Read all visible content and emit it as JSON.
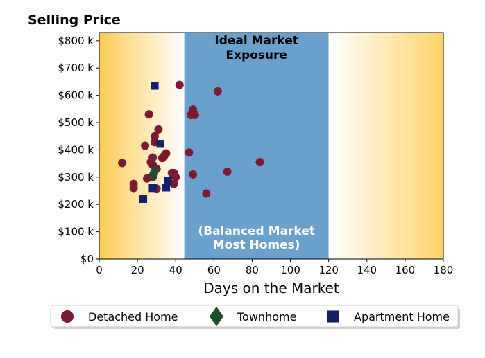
{
  "chart_data": {
    "type": "scatter",
    "title": "Selling Price",
    "xlabel": "Days on the Market",
    "ylabel": "",
    "xlim": [
      0,
      180
    ],
    "ylim": [
      0,
      830000
    ],
    "xticks": [
      0,
      20,
      40,
      60,
      80,
      100,
      120,
      140,
      160,
      180
    ],
    "xtick_labels": [
      "0",
      "20",
      "40",
      "60",
      "80",
      "100",
      "120",
      "140",
      "160",
      "180"
    ],
    "yticks": [
      0,
      100000,
      200000,
      300000,
      400000,
      500000,
      600000,
      700000,
      800000
    ],
    "ytick_labels": [
      "$0",
      "$100 k",
      "$200 k",
      "$300 k",
      "$400 k",
      "$500 k",
      "$600 k",
      "$700 k",
      "$800 k"
    ],
    "grid": false,
    "legend_position": "bottom",
    "bands": [
      {
        "x0": 0,
        "x1": 44.5,
        "style": "gradient",
        "color_edge": "#ffcc55",
        "color_inner": "#ffffff"
      },
      {
        "x0": 44.5,
        "x1": 120,
        "style": "solid",
        "color": "#6aa0cc",
        "label_top": [
          "Ideal Market",
          "Exposure"
        ],
        "label_bottom": [
          "(Balanced Market",
          "Most Homes)"
        ]
      },
      {
        "x0": 120,
        "x1": 180,
        "style": "gradient",
        "color_edge": "#ffd36a",
        "color_inner": "#ffffff"
      }
    ],
    "series": [
      {
        "name": "Detached Home",
        "marker": "circle",
        "color": "#7b1a33",
        "points": [
          [
            12,
            352000
          ],
          [
            18,
            275000
          ],
          [
            18,
            260000
          ],
          [
            24,
            415000
          ],
          [
            26,
            530000
          ],
          [
            25,
            295000
          ],
          [
            27,
            355000
          ],
          [
            28,
            372000
          ],
          [
            28,
            345000
          ],
          [
            28,
            300000
          ],
          [
            29,
            450000
          ],
          [
            29,
            428000
          ],
          [
            30,
            330000
          ],
          [
            30,
            258000
          ],
          [
            31,
            475000
          ],
          [
            33,
            370000
          ],
          [
            34,
            378000
          ],
          [
            35,
            387000
          ],
          [
            38,
            315000
          ],
          [
            39,
            315000
          ],
          [
            40,
            300000
          ],
          [
            39,
            275000
          ],
          [
            42,
            638000
          ],
          [
            47,
            390000
          ],
          [
            48,
            528000
          ],
          [
            49,
            548000
          ],
          [
            50,
            528000
          ],
          [
            49,
            310000
          ],
          [
            56,
            240000
          ],
          [
            62,
            615000
          ],
          [
            67,
            320000
          ],
          [
            84,
            355000
          ]
        ]
      },
      {
        "name": "Townhome",
        "marker": "diamond",
        "color": "#1e4d2b",
        "points": [
          [
            28,
            308000
          ],
          [
            29,
            322000
          ]
        ]
      },
      {
        "name": "Apartment Home",
        "marker": "square",
        "color": "#13216a",
        "points": [
          [
            29,
            635000
          ],
          [
            32,
            422000
          ],
          [
            36,
            285000
          ],
          [
            35,
            262000
          ],
          [
            28,
            260000
          ],
          [
            23,
            220000
          ]
        ]
      }
    ]
  }
}
